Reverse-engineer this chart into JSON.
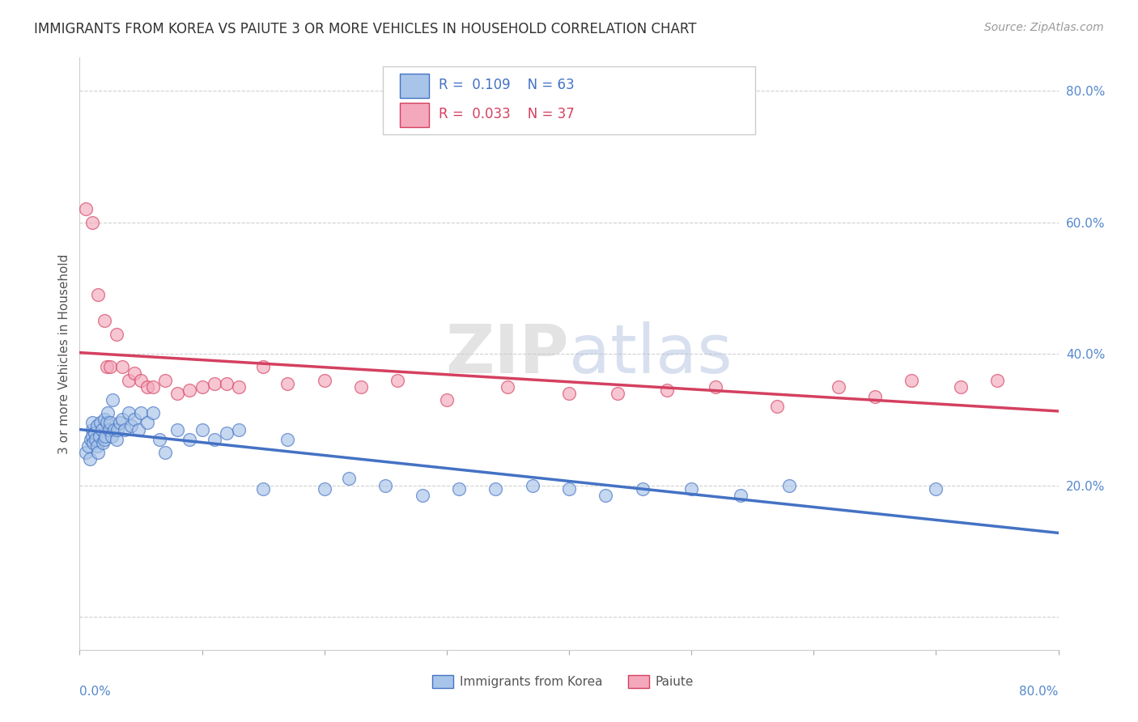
{
  "title": "IMMIGRANTS FROM KOREA VS PAIUTE 3 OR MORE VEHICLES IN HOUSEHOLD CORRELATION CHART",
  "source": "Source: ZipAtlas.com",
  "ylabel": "3 or more Vehicles in Household",
  "xlim": [
    0.0,
    0.8
  ],
  "ylim": [
    -0.05,
    0.85
  ],
  "yticks": [
    0.0,
    0.2,
    0.4,
    0.6,
    0.8
  ],
  "color_korea": "#a8c4e8",
  "color_paiute": "#f4a8bc",
  "line_color_korea": "#4472c4",
  "line_color_paiute": "#d44060",
  "background_color": "#ffffff",
  "grid_color": "#d0d0d0",
  "korea_x": [
    0.005,
    0.007,
    0.008,
    0.009,
    0.01,
    0.01,
    0.01,
    0.011,
    0.012,
    0.013,
    0.014,
    0.014,
    0.015,
    0.016,
    0.017,
    0.018,
    0.019,
    0.02,
    0.02,
    0.021,
    0.022,
    0.023,
    0.024,
    0.025,
    0.026,
    0.027,
    0.028,
    0.03,
    0.031,
    0.033,
    0.035,
    0.037,
    0.04,
    0.042,
    0.045,
    0.048,
    0.05,
    0.055,
    0.06,
    0.065,
    0.07,
    0.08,
    0.09,
    0.1,
    0.11,
    0.12,
    0.13,
    0.15,
    0.17,
    0.2,
    0.22,
    0.25,
    0.28,
    0.31,
    0.34,
    0.37,
    0.4,
    0.43,
    0.46,
    0.5,
    0.54,
    0.58,
    0.7
  ],
  "korea_y": [
    0.25,
    0.26,
    0.24,
    0.27,
    0.285,
    0.295,
    0.275,
    0.265,
    0.28,
    0.27,
    0.29,
    0.26,
    0.25,
    0.275,
    0.295,
    0.285,
    0.265,
    0.3,
    0.27,
    0.275,
    0.295,
    0.31,
    0.285,
    0.295,
    0.275,
    0.33,
    0.285,
    0.27,
    0.285,
    0.295,
    0.3,
    0.285,
    0.31,
    0.29,
    0.3,
    0.285,
    0.31,
    0.295,
    0.31,
    0.27,
    0.25,
    0.285,
    0.27,
    0.285,
    0.27,
    0.28,
    0.285,
    0.195,
    0.27,
    0.195,
    0.21,
    0.2,
    0.185,
    0.195,
    0.195,
    0.2,
    0.195,
    0.185,
    0.195,
    0.195,
    0.185,
    0.2,
    0.195
  ],
  "paiute_x": [
    0.005,
    0.01,
    0.015,
    0.02,
    0.022,
    0.025,
    0.03,
    0.035,
    0.04,
    0.045,
    0.05,
    0.055,
    0.06,
    0.07,
    0.08,
    0.09,
    0.1,
    0.11,
    0.12,
    0.13,
    0.15,
    0.17,
    0.2,
    0.23,
    0.26,
    0.3,
    0.35,
    0.4,
    0.44,
    0.48,
    0.52,
    0.57,
    0.62,
    0.65,
    0.68,
    0.72,
    0.75
  ],
  "paiute_y": [
    0.62,
    0.6,
    0.49,
    0.45,
    0.38,
    0.38,
    0.43,
    0.38,
    0.36,
    0.37,
    0.36,
    0.35,
    0.35,
    0.36,
    0.34,
    0.345,
    0.35,
    0.355,
    0.355,
    0.35,
    0.38,
    0.355,
    0.36,
    0.35,
    0.36,
    0.33,
    0.35,
    0.34,
    0.34,
    0.345,
    0.35,
    0.32,
    0.35,
    0.335,
    0.36,
    0.35,
    0.36
  ]
}
